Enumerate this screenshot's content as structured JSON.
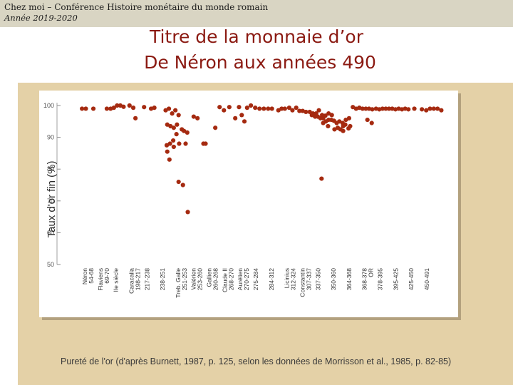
{
  "header": {
    "line1": "Chez moi – Conférence Histoire monétaire du monde romain",
    "line2": "Année 2019-2020"
  },
  "slide": {
    "title_line1": "Titre de la monnaie d’or",
    "title_line2": "De Néron aux années 490"
  },
  "figure": {
    "caption": "Pureté de l'or (d'après Burnett, 1987, p. 125, selon les données de Morrisson et al., 1985, p. 82-85)"
  },
  "colors": {
    "background": "#e4d1a7",
    "panel": "#ffffff",
    "point": "#a52a10",
    "title": "#8b1a12"
  },
  "chart_data": {
    "type": "scatter",
    "title": "",
    "xlabel": "",
    "ylabel": "Taux d'or fin (%)",
    "ylim": [
      50,
      100
    ],
    "yticks": [
      50,
      60,
      70,
      80,
      90,
      100
    ],
    "grid": false,
    "categories": [
      {
        "label": "Néron",
        "sub": "54-68"
      },
      {
        "label": "Flaviens",
        "sub": "69-70"
      },
      {
        "label": "IIe siècle",
        "sub": ""
      },
      {
        "label": "Caracalla",
        "sub": "198-217"
      },
      {
        "label": "217-238",
        "sub": ""
      },
      {
        "label": "238-251",
        "sub": ""
      },
      {
        "label": "Treb. Galle",
        "sub": "251-253"
      },
      {
        "label": "Valérien",
        "sub": "253-260"
      },
      {
        "label": "Gallien",
        "sub": "260-268"
      },
      {
        "label": "Claude II",
        "sub": "268-270"
      },
      {
        "label": "Aurélien",
        "sub": "270-275"
      },
      {
        "label": "275-284",
        "sub": ""
      },
      {
        "label": "284-312",
        "sub": ""
      },
      {
        "label": "Licinius",
        "sub": "312-324"
      },
      {
        "label": "Constantin",
        "sub": "307-337"
      },
      {
        "label": "337-350",
        "sub": ""
      },
      {
        "label": "350-360",
        "sub": ""
      },
      {
        "label": "364-368",
        "sub": ""
      },
      {
        "label": "368-378",
        "sub": "OR"
      },
      {
        "label": "378-395",
        "sub": ""
      },
      {
        "label": "395-425",
        "sub": ""
      },
      {
        "label": "425-450",
        "sub": ""
      },
      {
        "label": "450-491",
        "sub": ""
      }
    ],
    "points": [
      [
        1.0,
        99
      ],
      [
        1.35,
        99
      ],
      [
        2.05,
        99
      ],
      [
        3.3,
        99
      ],
      [
        3.65,
        99
      ],
      [
        3.95,
        99.3
      ],
      [
        4.25,
        100
      ],
      [
        4.55,
        100
      ],
      [
        4.85,
        99.6
      ],
      [
        5.4,
        100
      ],
      [
        5.75,
        99.3
      ],
      [
        5.95,
        96
      ],
      [
        6.75,
        99.5
      ],
      [
        7.4,
        99
      ],
      [
        7.7,
        99.3
      ],
      [
        8.75,
        98.5
      ],
      [
        9.05,
        99
      ],
      [
        9.35,
        97.5
      ],
      [
        9.65,
        98.5
      ],
      [
        9.95,
        97
      ],
      [
        8.9,
        94
      ],
      [
        9.2,
        93.5
      ],
      [
        9.5,
        93
      ],
      [
        9.8,
        94
      ],
      [
        8.85,
        87.5
      ],
      [
        9.15,
        88
      ],
      [
        9.45,
        89
      ],
      [
        9.75,
        91
      ],
      [
        8.9,
        85.5
      ],
      [
        9.1,
        83
      ],
      [
        9.5,
        87
      ],
      [
        10.0,
        88
      ],
      [
        10.25,
        92.5
      ],
      [
        10.45,
        92
      ],
      [
        10.75,
        91.5
      ],
      [
        9.95,
        76
      ],
      [
        10.35,
        75
      ],
      [
        10.6,
        88
      ],
      [
        10.8,
        66.5
      ],
      [
        11.35,
        96.5
      ],
      [
        11.7,
        96
      ],
      [
        12.25,
        88
      ],
      [
        12.45,
        88
      ],
      [
        13.35,
        93
      ],
      [
        13.75,
        99.5
      ],
      [
        14.15,
        98.5
      ],
      [
        14.65,
        99.5
      ],
      [
        15.2,
        96
      ],
      [
        15.55,
        99.5
      ],
      [
        15.8,
        97
      ],
      [
        16.05,
        95
      ],
      [
        16.3,
        99.3
      ],
      [
        16.65,
        100
      ],
      [
        17.05,
        99.3
      ],
      [
        17.45,
        99
      ],
      [
        17.85,
        99
      ],
      [
        18.25,
        99
      ],
      [
        18.6,
        99
      ],
      [
        19.2,
        98.5
      ],
      [
        19.5,
        99
      ],
      [
        19.8,
        99
      ],
      [
        20.2,
        99.3
      ],
      [
        20.5,
        98.5
      ],
      [
        20.85,
        99.3
      ],
      [
        21.15,
        98.3
      ],
      [
        21.45,
        98.3
      ],
      [
        21.75,
        98
      ],
      [
        22.1,
        98
      ],
      [
        22.4,
        97.5
      ],
      [
        22.7,
        97.5
      ],
      [
        22.95,
        98.5
      ],
      [
        23.25,
        97
      ],
      [
        23.55,
        96.8
      ],
      [
        23.85,
        97.5
      ],
      [
        24.15,
        97
      ],
      [
        22.3,
        97
      ],
      [
        22.6,
        96.5
      ],
      [
        22.85,
        96.5
      ],
      [
        23.1,
        96
      ],
      [
        23.35,
        96
      ],
      [
        23.6,
        95
      ],
      [
        23.85,
        95.5
      ],
      [
        24.1,
        95.5
      ],
      [
        24.35,
        95.2
      ],
      [
        24.6,
        94.5
      ],
      [
        24.85,
        95
      ],
      [
        25.15,
        94.5
      ],
      [
        25.45,
        95.5
      ],
      [
        25.75,
        96
      ],
      [
        23.35,
        94.5
      ],
      [
        23.8,
        93.5
      ],
      [
        24.4,
        92.5
      ],
      [
        24.7,
        93
      ],
      [
        24.95,
        92.5
      ],
      [
        25.2,
        93.5
      ],
      [
        25.4,
        94
      ],
      [
        25.7,
        92.8
      ],
      [
        25.85,
        93.5
      ],
      [
        25.2,
        92
      ],
      [
        23.2,
        77
      ],
      [
        26.1,
        99.5
      ],
      [
        26.4,
        99
      ],
      [
        26.7,
        99.3
      ],
      [
        27.0,
        99
      ],
      [
        27.3,
        99
      ],
      [
        27.6,
        99
      ],
      [
        27.9,
        98.8
      ],
      [
        28.25,
        99
      ],
      [
        28.55,
        98.8
      ],
      [
        28.85,
        99
      ],
      [
        29.15,
        99
      ],
      [
        29.45,
        99
      ],
      [
        29.75,
        99
      ],
      [
        30.05,
        98.8
      ],
      [
        30.35,
        99
      ],
      [
        30.65,
        98.8
      ],
      [
        30.95,
        99
      ],
      [
        31.25,
        98.8
      ],
      [
        31.8,
        99
      ],
      [
        32.5,
        98.8
      ],
      [
        32.9,
        98.5
      ],
      [
        33.25,
        99
      ],
      [
        33.6,
        99
      ],
      [
        33.95,
        99
      ],
      [
        34.3,
        98.5
      ],
      [
        27.45,
        95.5
      ],
      [
        27.85,
        94.5
      ]
    ]
  }
}
